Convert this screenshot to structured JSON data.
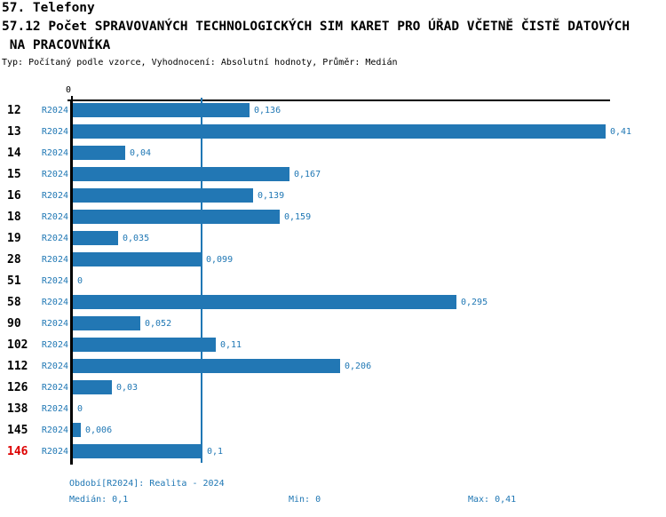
{
  "title": {
    "line1": "57. Telefony",
    "line2": "57.12 Počet SPRAVOVANÝCH TECHNOLOGICKÝCH SIM KARET PRO ÚŘAD VČETNĚ ČISTĚ DATOVÝCH",
    "line3": " NA PRACOVNÍKA"
  },
  "subtitle": "Typ: Počítaný podle vzorce, Vyhodnocení: Absolutní hodnoty, Průměr: Medián",
  "axis": {
    "zero_tick": "0"
  },
  "colors": {
    "bar_blue": "#2277b4",
    "text_blue": "#1f77b4",
    "highlight_red": "#dd0000",
    "axis_black": "#000000"
  },
  "footer": {
    "period": "Období[R2024]: Realita - 2024",
    "median": "Medián: 0,1",
    "min": "Min: 0",
    "max": "Max: 0,41"
  },
  "chart_data": {
    "type": "bar",
    "orientation": "horizontal",
    "title": "57.12 Počet SPRAVOVANÝCH TECHNOLOGICKÝCH SIM KARET PRO ÚŘAD VČETNĚ ČISTĚ DATOVÝCH NA PRACOVNÍKA",
    "series_label": "R2024",
    "categories": [
      "12",
      "13",
      "14",
      "15",
      "16",
      "18",
      "19",
      "28",
      "51",
      "58",
      "90",
      "102",
      "112",
      "126",
      "138",
      "145",
      "146"
    ],
    "values": [
      0.136,
      0.41,
      0.04,
      0.167,
      0.139,
      0.159,
      0.035,
      0.099,
      0,
      0.295,
      0.052,
      0.11,
      0.206,
      0.03,
      0,
      0.006,
      0.1
    ],
    "value_labels": [
      "0,136",
      "0,41",
      "0,04",
      "0,167",
      "0,139",
      "0,159",
      "0,035",
      "0,099",
      "0",
      "0,295",
      "0,052",
      "0,11",
      "0,206",
      "0,03",
      "0",
      "0,006",
      "0,1"
    ],
    "highlighted_category": "146",
    "xlim": [
      0,
      0.414
    ],
    "median": 0.1,
    "min": 0,
    "max": 0.41,
    "grid": false,
    "legend": false
  }
}
